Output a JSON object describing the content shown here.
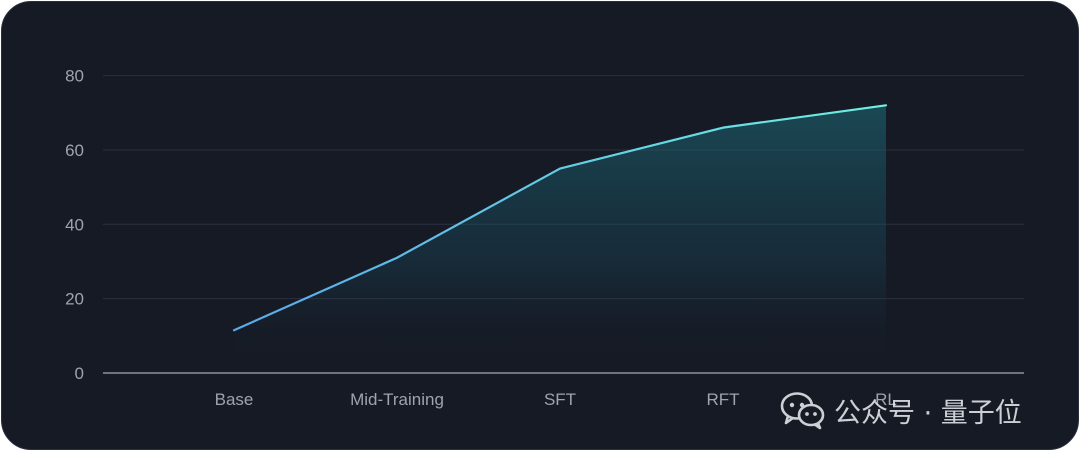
{
  "chart_data": {
    "type": "area",
    "categories": [
      "Base",
      "Mid-Training",
      "SFT",
      "RFT",
      "RL"
    ],
    "values": [
      11.5,
      31,
      55,
      66,
      72
    ],
    "ylim": [
      0,
      85
    ],
    "yticks": [
      0,
      20,
      40,
      60,
      80
    ],
    "grid": true,
    "colors": {
      "line_start": "#5aa8e8",
      "line_end": "#6ef0e0",
      "fill": "#1a6b7a",
      "grid": "#2b3040",
      "axis": "#9ea3ad"
    }
  },
  "watermark": {
    "text": "公众号 · 量子位",
    "icon": "wechat-icon"
  }
}
